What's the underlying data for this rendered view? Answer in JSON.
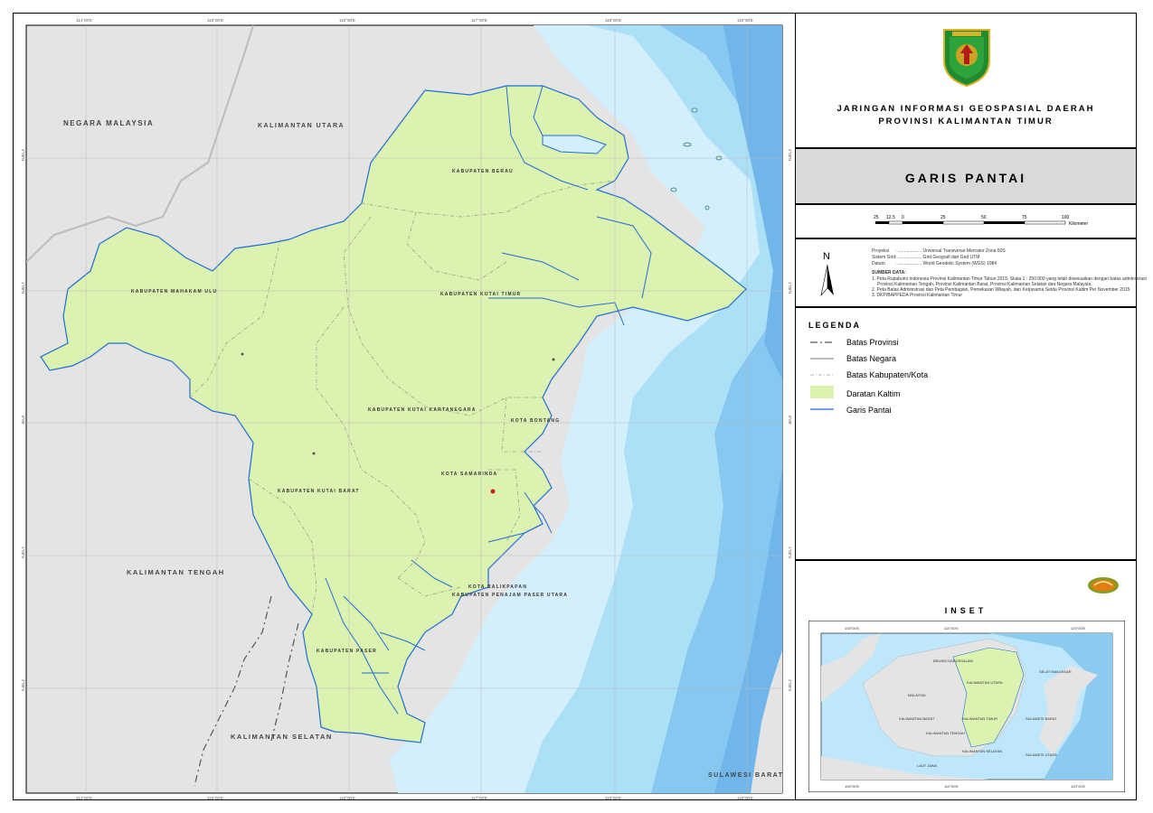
{
  "map": {
    "regions": {
      "malaysia": "NEGARA MALAYSIA",
      "kaltara": "KALIMANTAN UTARA",
      "kalteng": "KALIMANTAN TENGAH",
      "kalsel": "KALIMANTAN SELATAN",
      "sulbar": "SULAWESI BARAT"
    },
    "districts": {
      "berau": "KABUPATEN BERAU",
      "mahulu": "KABUPATEN MAHAKAM ULU",
      "kutim": "KABUPATEN KUTAI TIMUR",
      "kukar": "KABUPATEN KUTAI KARTANEGARA",
      "bontang": "KOTA BONTANG",
      "samarinda": "KOTA SAMARINDA",
      "kubar": "KABUPATEN KUTAI BARAT",
      "balikpapan": "KOTA BALIKPAPAN",
      "ppu": "KABUPATEN PENAJAM PASER UTARA",
      "paser": "KABUPATEN PASER"
    },
    "top_ticks": [
      "114°00'E",
      "115°00'E",
      "116°00'E",
      "117°00'E",
      "118°00'E",
      "119°00'E"
    ],
    "bottom_ticks": [
      "114°00'E",
      "115°00'E",
      "116°00'E",
      "117°00'E",
      "118°00'E",
      "119°00'E"
    ],
    "left_ticks": [
      "2°00'N",
      "1°00'N",
      "0°00'",
      "1°00'S",
      "2°00'S"
    ],
    "colors": {
      "land": "#dcf2b0",
      "sea_light": "#cfeefb",
      "sea_mid": "#a8daf5",
      "sea_deep": "#7ec2ee",
      "neighbour": "#e4e4e4",
      "coast": "#1f6fd6"
    }
  },
  "header": {
    "title_line1": "JARINGAN INFORMASI GEOSPASIAL DAERAH",
    "title_line2": "PROVINSI KALIMANTAN TIMUR",
    "emblem_icon": "provincial-emblem-icon"
  },
  "map_title": "GARIS PANTAI",
  "scale": {
    "labels": [
      "25",
      "12.5",
      "0",
      "25",
      "50",
      "75",
      "100"
    ],
    "unit": "Kilometer"
  },
  "info": {
    "north": "N",
    "proj_label": "Proyeksi",
    "proj_value": ": ................... Universal Transverse Mercator Zona 50S",
    "grid_label": "Sistem Grid",
    "grid_value": ": ................... Grid Geografi dan Grid UTM",
    "datum_label": "Datum",
    "datum_value": ": ................... World Geodetic System (WGS) 1984",
    "source_title": "SUMBER DATA:",
    "source_1": "1. Peta Rupabumi Indonesia Provinsi Kalimantan Timur Tahun 2015, Skala 1 : 250.000 yang telah disesuaikan dengan batas administrasi",
    "source_1b": "Provinsi Kalimantan Tengah, Provinsi Kalimantan Barat, Provinsi Kalimantan Selatan dan Negara Malaysia.",
    "source_2": "2. Peta Batas Administrasi dan Peta Pembagian, Pemekaran Wilayah, dan Kerjasama Setda Provinsi Kaltim Per November 2015",
    "source_3": "3. DKP/BAPPEDA Provinsi Kalimantan Timur"
  },
  "legend": {
    "title": "LEGENDA",
    "items": [
      "Batas Provinsi",
      "Batas Negara",
      "Batas Kabupaten/Kota",
      "Daratan Kaltim",
      "Garis Pantai"
    ]
  },
  "inset": {
    "title": "INSET",
    "top_ticks": [
      "105°00'E",
      "110°00'E",
      "120°00'E"
    ],
    "bottom_ticks": [
      "105°00'E",
      "110°00'E",
      "120°00'E"
    ],
    "labels": {
      "brunei": "BRUNEI DARUSSALAM",
      "malaysia": "MALAYSIA",
      "kalbar": "KALIMANTAN BARAT",
      "kalteng": "KALIMANTAN TENGAH",
      "kaltim": "KALIMANTAN TIMUR",
      "kalsel": "KALIMANTAN SELATAN",
      "kaltara": "KALIMANTAN UTARA",
      "sulbar": "SULAWESI BARAT",
      "sulut": "SULAWESI UTARA",
      "laut": "LAUT JAWA",
      "selat": "SELAT MAKASSAR"
    }
  },
  "logo": {
    "icon": "agency-logo-icon"
  }
}
